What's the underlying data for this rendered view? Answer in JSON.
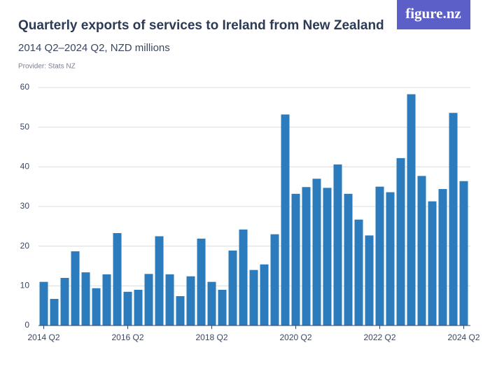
{
  "chart_data": {
    "type": "bar",
    "title": "Quarterly exports of services to Ireland from New Zealand",
    "subtitle": "2014 Q2–2024 Q2, NZD millions",
    "provider": "Provider: Stats NZ",
    "logo": "figure.nz",
    "color": "#2b7bbd",
    "categories": [
      "2014 Q2",
      null,
      null,
      null,
      null,
      null,
      null,
      null,
      "2016 Q2",
      null,
      null,
      null,
      null,
      null,
      null,
      null,
      "2018 Q2",
      null,
      null,
      null,
      null,
      null,
      null,
      null,
      "2020 Q2",
      null,
      null,
      null,
      null,
      null,
      null,
      null,
      "2022 Q2",
      null,
      null,
      null,
      null,
      null,
      null,
      null,
      "2024 Q2"
    ],
    "values": [
      11,
      6.7,
      12,
      18.7,
      13.4,
      9.4,
      12.9,
      23.3,
      8.5,
      9,
      13,
      22.5,
      12.9,
      7.4,
      12.4,
      21.9,
      11,
      9,
      18.9,
      24.2,
      14,
      15.4,
      23,
      53.2,
      33.2,
      34.9,
      37,
      34.7,
      40.6,
      33.2,
      26.7,
      22.7,
      35,
      33.6,
      42.2,
      58.3,
      37.7,
      31.3,
      34.4,
      53.6,
      36.4
    ],
    "ylim": [
      0,
      60
    ],
    "yticks": [
      0,
      10,
      20,
      30,
      40,
      50,
      60
    ],
    "grid": true
  }
}
